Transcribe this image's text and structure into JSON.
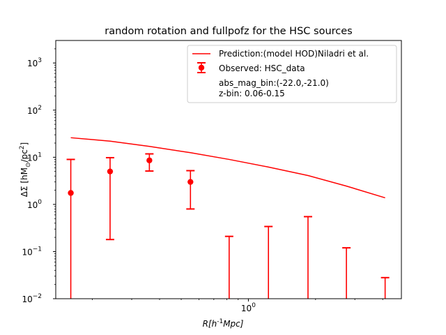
{
  "chart_data": {
    "type": "scatter",
    "title": "random rotation and fullpofz for the HSC sources",
    "xlabel": "R[h^{-1}Mpc]",
    "ylabel": "ΔΣ [hM_⊙/pc^2]",
    "xscale": "log",
    "yscale": "log",
    "xlim": [
      0.137,
      4.85
    ],
    "ylim": [
      0.01,
      3000
    ],
    "x_major_ticks": [
      {
        "value": 1,
        "label": "10^0"
      }
    ],
    "x_minor_ticks": [
      0.2,
      0.3,
      0.4,
      0.5,
      0.6,
      0.7,
      0.8,
      0.9,
      2,
      3,
      4
    ],
    "y_ticks": [
      {
        "value": 0.01,
        "mantissa": "10",
        "exp": "−2"
      },
      {
        "value": 0.1,
        "mantissa": "10",
        "exp": "−1"
      },
      {
        "value": 1,
        "mantissa": "10",
        "exp": "0"
      },
      {
        "value": 10,
        "mantissa": "10",
        "exp": "1"
      },
      {
        "value": 100,
        "mantissa": "10",
        "exp": "2"
      },
      {
        "value": 1000,
        "mantissa": "10",
        "exp": "3"
      }
    ],
    "grid": false,
    "legend_position": "top-right",
    "series": [
      {
        "name": "Prediction:(model HOD)Niladri et al.",
        "kind": "line",
        "color": "#ff0000",
        "x": [
          0.16,
          0.24,
          0.36,
          0.55,
          0.82,
          1.23,
          1.85,
          2.75,
          4.1
        ],
        "y": [
          26,
          22,
          17,
          12.5,
          9.0,
          6.2,
          4.1,
          2.45,
          1.38
        ]
      },
      {
        "name": "Observed: HSC_data",
        "kind": "errorbar",
        "color": "#ff0000",
        "x": [
          0.16,
          0.24,
          0.36,
          0.55,
          0.82,
          1.23,
          1.85,
          2.75,
          4.1
        ],
        "y": [
          1.75,
          5.0,
          8.6,
          3.0,
          null,
          null,
          null,
          null,
          null
        ],
        "yerr_low": [
          0.01,
          0.18,
          5.1,
          0.8,
          0.01,
          0.01,
          0.01,
          0.01,
          0.01
        ],
        "yerr_high": [
          9.0,
          9.8,
          11.8,
          5.2,
          0.21,
          0.34,
          0.55,
          0.12,
          0.028
        ]
      }
    ],
    "legend_extra_lines": [
      "abs_mag_bin:(-22.0,-21.0)",
      "z-bin: 0.06-0.15"
    ]
  }
}
